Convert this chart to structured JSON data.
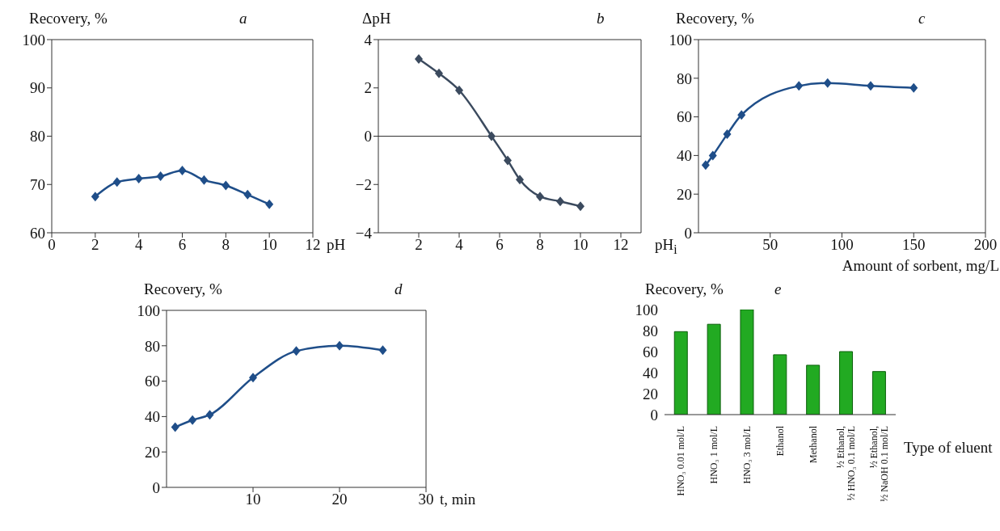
{
  "chart_data": [
    {
      "type": "line",
      "title": "a",
      "ylabel": "Recovery, %",
      "xlabel": "pH",
      "x": [
        2,
        3,
        4,
        5,
        6,
        7,
        8,
        9,
        10
      ],
      "values": [
        67.5,
        70.5,
        71.2,
        71.7,
        72.9,
        70.9,
        69.8,
        67.9,
        65.9
      ],
      "color": "#1f4e89",
      "marker": "diamond",
      "xlim": [
        0,
        12
      ],
      "xticks": [
        0,
        2,
        4,
        6,
        8,
        10,
        12
      ],
      "ylim": [
        60,
        100
      ],
      "yticks": [
        60,
        70,
        80,
        90,
        100
      ]
    },
    {
      "type": "line",
      "title": "b",
      "ylabel": "ΔpH",
      "xlabel": "pH$_{i}$",
      "x": [
        2,
        3,
        4,
        5.6,
        6.4,
        7,
        8,
        9,
        10
      ],
      "values": [
        3.2,
        2.6,
        1.9,
        0,
        -1,
        -1.8,
        -2.5,
        -2.7,
        -2.9
      ],
      "color": "#3b4a5e",
      "marker": "diamond",
      "xlim": [
        0,
        13
      ],
      "xticks": [
        2,
        4,
        6,
        8,
        10,
        12
      ],
      "ylim": [
        -4,
        4
      ],
      "yticks": [
        {
          "value": -4,
          "label": "−4"
        },
        {
          "value": -2,
          "label": "−2"
        },
        0,
        2,
        4
      ],
      "ref_lines": [
        {
          "axis": "y",
          "value": 0
        }
      ]
    },
    {
      "type": "line",
      "title": "c",
      "ylabel": "Recovery, %",
      "xlabel": "Amount of sorbent, mg/L",
      "x": [
        5,
        10,
        20,
        30,
        70,
        90,
        120,
        150
      ],
      "values": [
        35,
        40,
        51,
        61,
        76,
        77.5,
        76,
        75
      ],
      "color": "#1f4e89",
      "marker": "diamond",
      "xlim": [
        0,
        200
      ],
      "xticks": [
        50,
        100,
        150,
        200
      ],
      "ylim": [
        0,
        100
      ],
      "yticks": [
        0,
        20,
        40,
        60,
        80,
        100
      ]
    },
    {
      "type": "line",
      "title": "d",
      "ylabel": "Recovery, %",
      "xlabel": "t, min",
      "x": [
        1,
        3,
        5,
        10,
        15,
        20,
        25
      ],
      "values": [
        34,
        38,
        41,
        62,
        77,
        80,
        77.5
      ],
      "color": "#1f4e89",
      "marker": "diamond",
      "xlim": [
        0,
        30
      ],
      "xticks": [
        10,
        20,
        30
      ],
      "ylim": [
        0,
        100
      ],
      "yticks": [
        0,
        20,
        40,
        60,
        80,
        100
      ]
    },
    {
      "type": "bar",
      "title": "e",
      "ylabel": "Recovery, %",
      "xlabel": "Type of eluent",
      "categories": [
        "HNO₃ 0.01 mol/L",
        "HNO₃ 1 mol/L",
        "HNO₃ 3 mol/L",
        "Ethanol",
        "Methanol",
        "½ Ethanol, ½ HNO₃ 0.1 mol/L",
        "½ Ethanol, ½ NaOH 0.1 mol/L"
      ],
      "values": [
        79,
        86,
        100,
        57,
        47,
        60,
        41
      ],
      "color": "#22aa22",
      "ylim": [
        0,
        100
      ],
      "yticks": [
        0,
        20,
        40,
        60,
        80,
        100
      ]
    }
  ]
}
